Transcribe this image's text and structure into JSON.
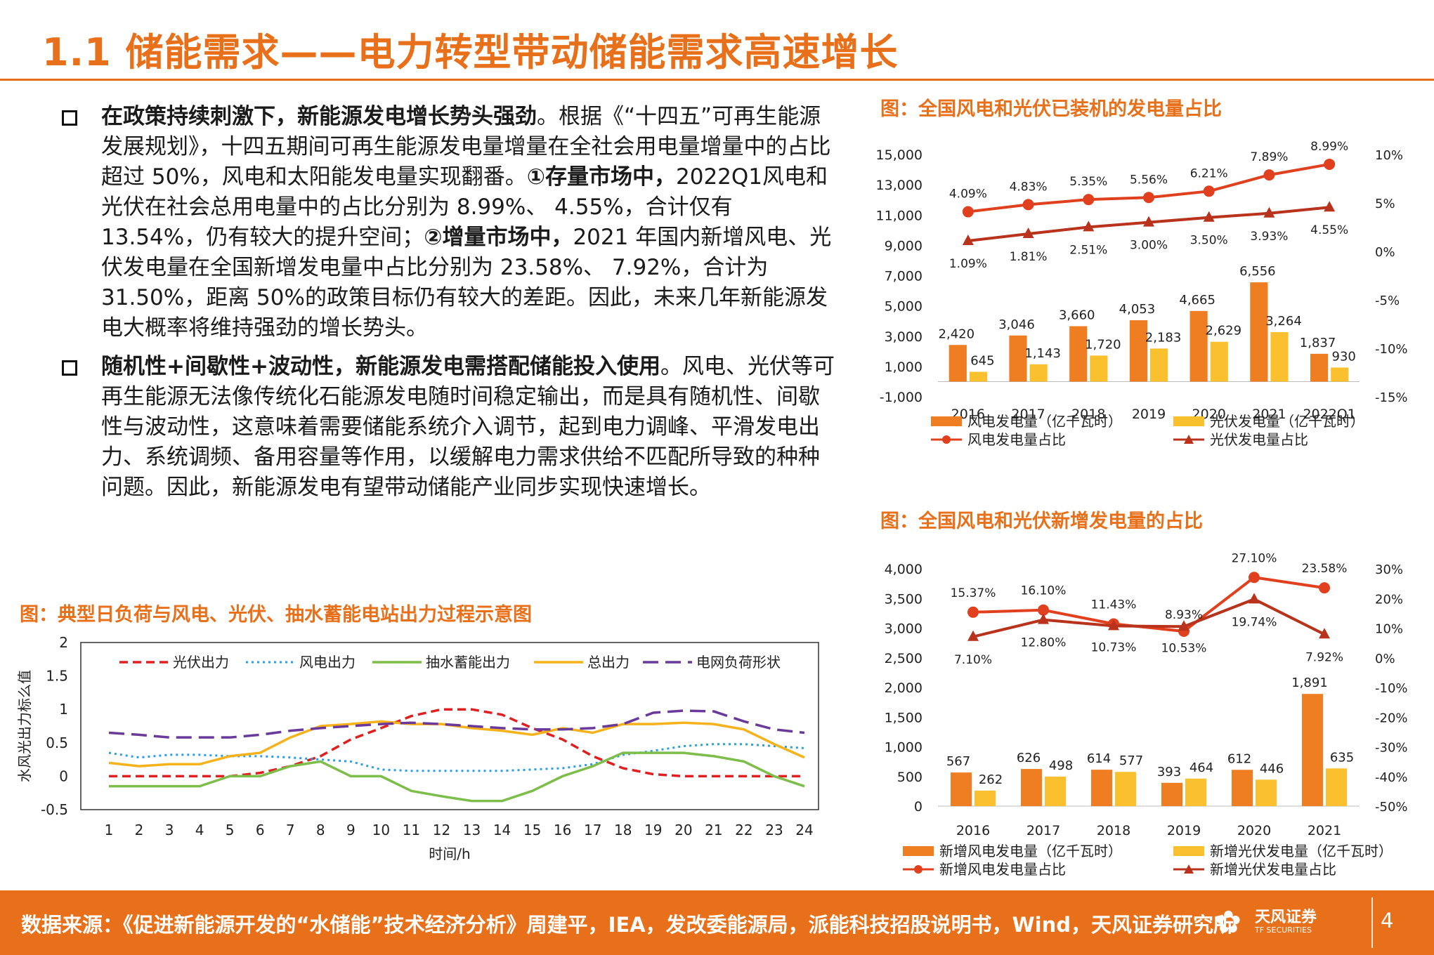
{
  "page": {
    "title": "1.1 储能需求——电力转型带动储能需求高速增长",
    "page_number": "4"
  },
  "bullets": [
    {
      "bold": "在政策持续刺激下，新能源发电增长势头强劲",
      "text1": "。根据《“十四五”可再生能源发展规划》，十四五期间可再生能源发电量增量在全社会用电量增量中的占比超过 50%，风电和太阳能发电量实现翻番。",
      "bold2": "①存量市场中，",
      "text2": "2022Q1风电和光伏在社会总用电量中的占比分别为 8.99%、 4.55%，合计仅有 13.54%，仍有较大的提升空间；",
      "bold3": "②增量市场中，",
      "text3": "2021 年国内新增风电、光伏发电量在全国新增发电量中占比分别为 23.58%、 7.92%，合计为 31.50%，距离 50%的政策目标仍有较大的差距。因此，未来几年新能源发电大概率将维持强劲的增长势头。"
    },
    {
      "bold": "随机性+间歇性+波动性，新能源发电需搭配储能投入使用",
      "text1": "。风电、光伏等可再生能源无法像传统化石能源发电随时间稳定输出，而是具有随机性、间歇性与波动性，这意味着需要储能系统介入调节，起到电力调峰、平滑发电出力、系统调频、备用容量等作用，以缓解电力需求供给不匹配所导致的种种问题。因此，新能源发电有望带动储能产业同步实现快速增长。"
    }
  ],
  "footer": {
    "source": "数据来源：《促进新能源开发的“水储能”技术经济分析》周建平，IEA，发改委能源局，派能科技招股说明书，Wind，天风证券研究所",
    "logo_cn": "天风证券",
    "logo_en": "TF SECURITIES"
  },
  "colors": {
    "accent": "#e8701a",
    "wind_bar": "#ef7d22",
    "pv_bar": "#fbc02d",
    "wind_line": "#e0401e",
    "pv_line": "#b8321c"
  },
  "chart_data": [
    {
      "id": "installed",
      "type": "bar+line",
      "title": "图：全国风电和光伏已装机的发电量占比",
      "categories": [
        "2016",
        "2017",
        "2018",
        "2019",
        "2020",
        "2021",
        "2022Q1"
      ],
      "series": [
        {
          "name": "风电发电量（亿千瓦时）",
          "kind": "bar",
          "axis": "left",
          "values": [
            2420,
            3046,
            3660,
            4053,
            4665,
            6556,
            1837
          ],
          "labels": [
            "2,420",
            "3,046",
            "3,660",
            "4,053",
            "4,665",
            "6,556",
            "1,837"
          ]
        },
        {
          "name": "光伏发电量（亿千瓦时）",
          "kind": "bar",
          "axis": "left",
          "values": [
            645,
            1143,
            1720,
            2183,
            2629,
            3264,
            930
          ],
          "labels": [
            "645",
            "1,143",
            "1,720",
            "2,183",
            "2,629",
            "3,264",
            "930"
          ]
        },
        {
          "name": "风电发电量占比",
          "kind": "line",
          "axis": "right",
          "values": [
            4.09,
            4.83,
            5.35,
            5.56,
            6.21,
            7.89,
            8.99
          ],
          "labels": [
            "4.09%",
            "4.83%",
            "5.35%",
            "5.56%",
            "6.21%",
            "7.89%",
            "8.99%"
          ]
        },
        {
          "name": "光伏发电量占比",
          "kind": "line",
          "axis": "right",
          "values": [
            1.09,
            1.81,
            2.51,
            3.0,
            3.5,
            3.93,
            4.55
          ],
          "labels": [
            "1.09%",
            "1.81%",
            "2.51%",
            "3.00%",
            "3.50%",
            "3.93%",
            "4.55%"
          ]
        }
      ],
      "y_left": {
        "min": -1000,
        "max": 15000,
        "ticks": [
          "15,000",
          "13,000",
          "11,000",
          "9,000",
          "7,000",
          "5,000",
          "3,000",
          "1,000",
          "-1,000"
        ]
      },
      "y_right": {
        "min": -15,
        "max": 10,
        "ticks": [
          "10%",
          "5%",
          "0%",
          "-5%",
          "-10%",
          "-15%"
        ]
      }
    },
    {
      "id": "incremental",
      "type": "bar+line",
      "title": "图：全国风电和光伏新增发电量的占比",
      "categories": [
        "2016",
        "2017",
        "2018",
        "2019",
        "2020",
        "2021"
      ],
      "series": [
        {
          "name": "新增风电发电量（亿千瓦时）",
          "kind": "bar",
          "axis": "left",
          "values": [
            567,
            626,
            614,
            393,
            612,
            1891
          ],
          "labels": [
            "567",
            "626",
            "614",
            "393",
            "612",
            "1,891"
          ]
        },
        {
          "name": "新增光伏发电量（亿千瓦时）",
          "kind": "bar",
          "axis": "left",
          "values": [
            262,
            498,
            577,
            464,
            446,
            635
          ],
          "labels": [
            "262",
            "498",
            "577",
            "464",
            "446",
            "635"
          ]
        },
        {
          "name": "新增风电发电量占比",
          "kind": "line",
          "axis": "right",
          "values": [
            15.37,
            16.1,
            11.43,
            8.93,
            27.1,
            23.58
          ],
          "labels": [
            "15.37%",
            "16.10%",
            "11.43%",
            "8.93%",
            "27.10%",
            "23.58%"
          ]
        },
        {
          "name": "新增光伏发电量占比",
          "kind": "line",
          "axis": "right",
          "values": [
            7.1,
            12.8,
            10.73,
            10.53,
            19.74,
            7.92
          ],
          "labels": [
            "7.10%",
            "12.80%",
            "10.73%",
            "10.53%",
            "19.74%",
            "7.92%"
          ]
        }
      ],
      "y_left": {
        "min": 0,
        "max": 4000,
        "ticks": [
          "4,000",
          "3,500",
          "3,000",
          "2,500",
          "2,000",
          "1,500",
          "1,000",
          "500",
          "0"
        ]
      },
      "y_right": {
        "min": -50,
        "max": 30,
        "ticks": [
          "30%",
          "20%",
          "10%",
          "0%",
          "-10%",
          "-20%",
          "-30%",
          "-40%",
          "-50%"
        ]
      }
    },
    {
      "id": "daily",
      "type": "line",
      "title": "图：典型日负荷与风电、光伏、抽水蓄能电站出力过程示意图",
      "xlabel": "时间/h",
      "ylabel": "水风光出力标么值",
      "x": [
        1,
        2,
        3,
        4,
        5,
        6,
        7,
        8,
        9,
        10,
        11,
        12,
        13,
        14,
        15,
        16,
        17,
        18,
        19,
        20,
        21,
        22,
        23,
        24
      ],
      "ylim": [
        -0.5,
        2
      ],
      "y_ticks": [
        "2",
        "1.5",
        "1",
        "0.5",
        "0",
        "-0.5"
      ],
      "series": [
        {
          "name": "光伏出力",
          "style": "dashed",
          "color": "#e02020",
          "values": [
            0,
            0,
            0,
            0,
            0,
            0.05,
            0.15,
            0.3,
            0.55,
            0.72,
            0.9,
            1.0,
            1.0,
            0.92,
            0.72,
            0.55,
            0.3,
            0.12,
            0.03,
            0,
            0,
            0,
            0,
            0
          ]
        },
        {
          "name": "风电出力",
          "style": "dotted",
          "color": "#2aa0e0",
          "values": [
            0.35,
            0.28,
            0.32,
            0.32,
            0.3,
            0.3,
            0.28,
            0.25,
            0.22,
            0.1,
            0.08,
            0.08,
            0.08,
            0.08,
            0.1,
            0.12,
            0.18,
            0.32,
            0.38,
            0.45,
            0.48,
            0.48,
            0.45,
            0.42
          ]
        },
        {
          "name": "抽水蓄能出力",
          "style": "solid",
          "color": "#7dbd4a",
          "values": [
            -0.15,
            -0.15,
            -0.15,
            -0.15,
            0,
            0,
            0.15,
            0.22,
            0,
            0,
            -0.22,
            -0.3,
            -0.37,
            -0.37,
            -0.22,
            0,
            0.15,
            0.35,
            0.35,
            0.35,
            0.3,
            0.22,
            0,
            -0.15
          ]
        },
        {
          "name": "总出力",
          "style": "solid",
          "color": "#f5b21b",
          "values": [
            0.2,
            0.15,
            0.18,
            0.18,
            0.3,
            0.35,
            0.58,
            0.75,
            0.78,
            0.82,
            0.78,
            0.78,
            0.72,
            0.68,
            0.62,
            0.72,
            0.65,
            0.78,
            0.78,
            0.8,
            0.78,
            0.7,
            0.48,
            0.28
          ]
        },
        {
          "name": "电网负荷形状",
          "style": "longdash",
          "color": "#6a3a9a",
          "values": [
            0.65,
            0.62,
            0.58,
            0.58,
            0.58,
            0.62,
            0.68,
            0.72,
            0.75,
            0.78,
            0.8,
            0.78,
            0.75,
            0.72,
            0.7,
            0.7,
            0.72,
            0.78,
            0.95,
            0.98,
            0.97,
            0.82,
            0.7,
            0.65
          ]
        }
      ]
    }
  ]
}
